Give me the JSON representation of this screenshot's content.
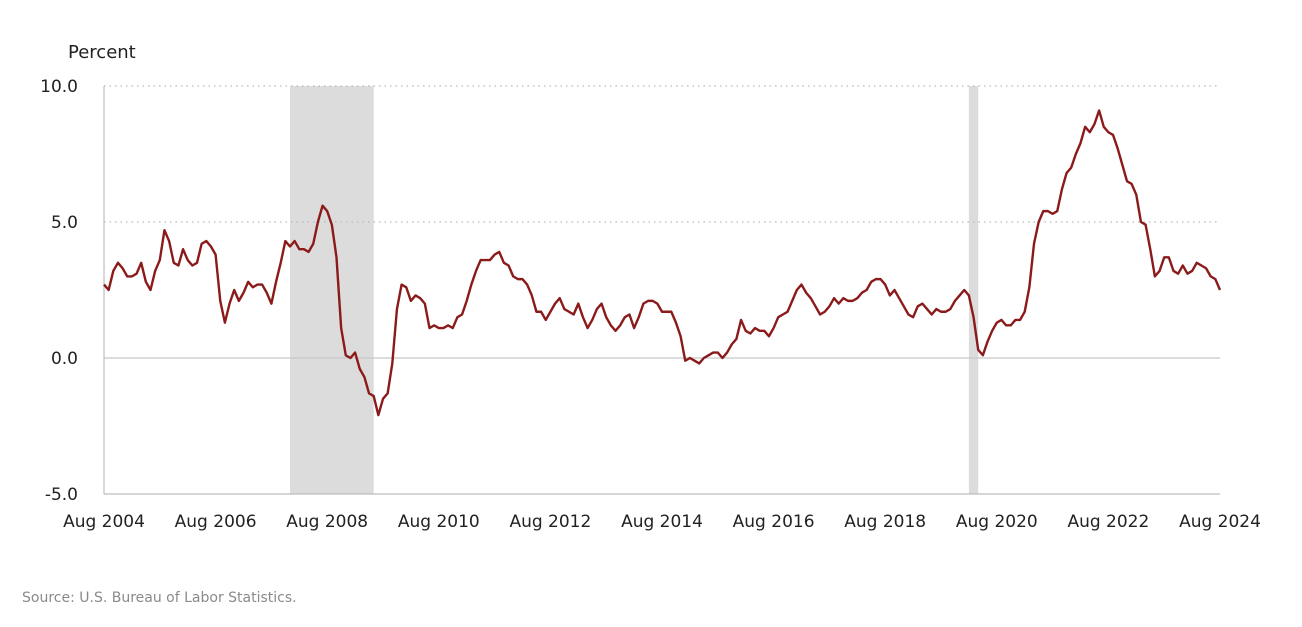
{
  "chart_data": {
    "type": "line",
    "ylabel": "Percent",
    "ylim": [
      -5,
      10
    ],
    "yticks": [
      "10.0",
      "5.0",
      "0.0",
      "-5.0"
    ],
    "ytick_values": [
      10,
      5,
      0,
      -5
    ],
    "xticks": [
      "Aug 2004",
      "Aug 2006",
      "Aug 2008",
      "Aug 2010",
      "Aug 2012",
      "Aug 2014",
      "Aug 2016",
      "Aug 2018",
      "Aug 2020",
      "Aug 2022",
      "Aug 2024"
    ],
    "x_start": "2004-08",
    "x_end": "2024-08",
    "grid": "horizontal dotted at 5.0 and 10.0; solid zero line",
    "recessions": [
      {
        "start": "2007-12",
        "end": "2009-06"
      },
      {
        "start": "2020-02",
        "end": "2020-04"
      }
    ],
    "series": [
      {
        "color": "#8b1a1a",
        "points": [
          [
            "2004-08",
            2.7
          ],
          [
            "2004-09",
            2.5
          ],
          [
            "2004-10",
            3.2
          ],
          [
            "2004-11",
            3.5
          ],
          [
            "2004-12",
            3.3
          ],
          [
            "2005-01",
            3.0
          ],
          [
            "2005-02",
            3.0
          ],
          [
            "2005-03",
            3.1
          ],
          [
            "2005-04",
            3.5
          ],
          [
            "2005-05",
            2.8
          ],
          [
            "2005-06",
            2.5
          ],
          [
            "2005-07",
            3.2
          ],
          [
            "2005-08",
            3.6
          ],
          [
            "2005-09",
            4.7
          ],
          [
            "2005-10",
            4.3
          ],
          [
            "2005-11",
            3.5
          ],
          [
            "2005-12",
            3.4
          ],
          [
            "2006-01",
            4.0
          ],
          [
            "2006-02",
            3.6
          ],
          [
            "2006-03",
            3.4
          ],
          [
            "2006-04",
            3.5
          ],
          [
            "2006-05",
            4.2
          ],
          [
            "2006-06",
            4.3
          ],
          [
            "2006-07",
            4.1
          ],
          [
            "2006-08",
            3.8
          ],
          [
            "2006-09",
            2.1
          ],
          [
            "2006-10",
            1.3
          ],
          [
            "2006-11",
            2.0
          ],
          [
            "2006-12",
            2.5
          ],
          [
            "2007-01",
            2.1
          ],
          [
            "2007-02",
            2.4
          ],
          [
            "2007-03",
            2.8
          ],
          [
            "2007-04",
            2.6
          ],
          [
            "2007-05",
            2.7
          ],
          [
            "2007-06",
            2.7
          ],
          [
            "2007-07",
            2.4
          ],
          [
            "2007-08",
            2.0
          ],
          [
            "2007-09",
            2.8
          ],
          [
            "2007-10",
            3.5
          ],
          [
            "2007-11",
            4.3
          ],
          [
            "2007-12",
            4.1
          ],
          [
            "2008-01",
            4.3
          ],
          [
            "2008-02",
            4.0
          ],
          [
            "2008-03",
            4.0
          ],
          [
            "2008-04",
            3.9
          ],
          [
            "2008-05",
            4.2
          ],
          [
            "2008-06",
            5.0
          ],
          [
            "2008-07",
            5.6
          ],
          [
            "2008-08",
            5.4
          ],
          [
            "2008-09",
            4.9
          ],
          [
            "2008-10",
            3.7
          ],
          [
            "2008-11",
            1.1
          ],
          [
            "2008-12",
            0.1
          ],
          [
            "2009-01",
            0.0
          ],
          [
            "2009-02",
            0.2
          ],
          [
            "2009-03",
            -0.4
          ],
          [
            "2009-04",
            -0.7
          ],
          [
            "2009-05",
            -1.3
          ],
          [
            "2009-06",
            -1.4
          ],
          [
            "2009-07",
            -2.1
          ],
          [
            "2009-08",
            -1.5
          ],
          [
            "2009-09",
            -1.3
          ],
          [
            "2009-10",
            -0.2
          ],
          [
            "2009-11",
            1.8
          ],
          [
            "2009-12",
            2.7
          ],
          [
            "2010-01",
            2.6
          ],
          [
            "2010-02",
            2.1
          ],
          [
            "2010-03",
            2.3
          ],
          [
            "2010-04",
            2.2
          ],
          [
            "2010-05",
            2.0
          ],
          [
            "2010-06",
            1.1
          ],
          [
            "2010-07",
            1.2
          ],
          [
            "2010-08",
            1.1
          ],
          [
            "2010-09",
            1.1
          ],
          [
            "2010-10",
            1.2
          ],
          [
            "2010-11",
            1.1
          ],
          [
            "2010-12",
            1.5
          ],
          [
            "2011-01",
            1.6
          ],
          [
            "2011-02",
            2.1
          ],
          [
            "2011-03",
            2.7
          ],
          [
            "2011-04",
            3.2
          ],
          [
            "2011-05",
            3.6
          ],
          [
            "2011-06",
            3.6
          ],
          [
            "2011-07",
            3.6
          ],
          [
            "2011-08",
            3.8
          ],
          [
            "2011-09",
            3.9
          ],
          [
            "2011-10",
            3.5
          ],
          [
            "2011-11",
            3.4
          ],
          [
            "2011-12",
            3.0
          ],
          [
            "2012-01",
            2.9
          ],
          [
            "2012-02",
            2.9
          ],
          [
            "2012-03",
            2.7
          ],
          [
            "2012-04",
            2.3
          ],
          [
            "2012-05",
            1.7
          ],
          [
            "2012-06",
            1.7
          ],
          [
            "2012-07",
            1.4
          ],
          [
            "2012-08",
            1.7
          ],
          [
            "2012-09",
            2.0
          ],
          [
            "2012-10",
            2.2
          ],
          [
            "2012-11",
            1.8
          ],
          [
            "2012-12",
            1.7
          ],
          [
            "2013-01",
            1.6
          ],
          [
            "2013-02",
            2.0
          ],
          [
            "2013-03",
            1.5
          ],
          [
            "2013-04",
            1.1
          ],
          [
            "2013-05",
            1.4
          ],
          [
            "2013-06",
            1.8
          ],
          [
            "2013-07",
            2.0
          ],
          [
            "2013-08",
            1.5
          ],
          [
            "2013-09",
            1.2
          ],
          [
            "2013-10",
            1.0
          ],
          [
            "2013-11",
            1.2
          ],
          [
            "2013-12",
            1.5
          ],
          [
            "2014-01",
            1.6
          ],
          [
            "2014-02",
            1.1
          ],
          [
            "2014-03",
            1.5
          ],
          [
            "2014-04",
            2.0
          ],
          [
            "2014-05",
            2.1
          ],
          [
            "2014-06",
            2.1
          ],
          [
            "2014-07",
            2.0
          ],
          [
            "2014-08",
            1.7
          ],
          [
            "2014-09",
            1.7
          ],
          [
            "2014-10",
            1.7
          ],
          [
            "2014-11",
            1.3
          ],
          [
            "2014-12",
            0.8
          ],
          [
            "2015-01",
            -0.1
          ],
          [
            "2015-02",
            0.0
          ],
          [
            "2015-03",
            -0.1
          ],
          [
            "2015-04",
            -0.2
          ],
          [
            "2015-05",
            0.0
          ],
          [
            "2015-06",
            0.1
          ],
          [
            "2015-07",
            0.2
          ],
          [
            "2015-08",
            0.2
          ],
          [
            "2015-09",
            0.0
          ],
          [
            "2015-10",
            0.2
          ],
          [
            "2015-11",
            0.5
          ],
          [
            "2015-12",
            0.7
          ],
          [
            "2016-01",
            1.4
          ],
          [
            "2016-02",
            1.0
          ],
          [
            "2016-03",
            0.9
          ],
          [
            "2016-04",
            1.1
          ],
          [
            "2016-05",
            1.0
          ],
          [
            "2016-06",
            1.0
          ],
          [
            "2016-07",
            0.8
          ],
          [
            "2016-08",
            1.1
          ],
          [
            "2016-09",
            1.5
          ],
          [
            "2016-10",
            1.6
          ],
          [
            "2016-11",
            1.7
          ],
          [
            "2016-12",
            2.1
          ],
          [
            "2017-01",
            2.5
          ],
          [
            "2017-02",
            2.7
          ],
          [
            "2017-03",
            2.4
          ],
          [
            "2017-04",
            2.2
          ],
          [
            "2017-05",
            1.9
          ],
          [
            "2017-06",
            1.6
          ],
          [
            "2017-07",
            1.7
          ],
          [
            "2017-08",
            1.9
          ],
          [
            "2017-09",
            2.2
          ],
          [
            "2017-10",
            2.0
          ],
          [
            "2017-11",
            2.2
          ],
          [
            "2017-12",
            2.1
          ],
          [
            "2018-01",
            2.1
          ],
          [
            "2018-02",
            2.2
          ],
          [
            "2018-03",
            2.4
          ],
          [
            "2018-04",
            2.5
          ],
          [
            "2018-05",
            2.8
          ],
          [
            "2018-06",
            2.9
          ],
          [
            "2018-07",
            2.9
          ],
          [
            "2018-08",
            2.7
          ],
          [
            "2018-09",
            2.3
          ],
          [
            "2018-10",
            2.5
          ],
          [
            "2018-11",
            2.2
          ],
          [
            "2018-12",
            1.9
          ],
          [
            "2019-01",
            1.6
          ],
          [
            "2019-02",
            1.5
          ],
          [
            "2019-03",
            1.9
          ],
          [
            "2019-04",
            2.0
          ],
          [
            "2019-05",
            1.8
          ],
          [
            "2019-06",
            1.6
          ],
          [
            "2019-07",
            1.8
          ],
          [
            "2019-08",
            1.7
          ],
          [
            "2019-09",
            1.7
          ],
          [
            "2019-10",
            1.8
          ],
          [
            "2019-11",
            2.1
          ],
          [
            "2019-12",
            2.3
          ],
          [
            "2020-01",
            2.5
          ],
          [
            "2020-02",
            2.3
          ],
          [
            "2020-03",
            1.5
          ],
          [
            "2020-04",
            0.3
          ],
          [
            "2020-05",
            0.1
          ],
          [
            "2020-06",
            0.6
          ],
          [
            "2020-07",
            1.0
          ],
          [
            "2020-08",
            1.3
          ],
          [
            "2020-09",
            1.4
          ],
          [
            "2020-10",
            1.2
          ],
          [
            "2020-11",
            1.2
          ],
          [
            "2020-12",
            1.4
          ],
          [
            "2021-01",
            1.4
          ],
          [
            "2021-02",
            1.7
          ],
          [
            "2021-03",
            2.6
          ],
          [
            "2021-04",
            4.2
          ],
          [
            "2021-05",
            5.0
          ],
          [
            "2021-06",
            5.4
          ],
          [
            "2021-07",
            5.4
          ],
          [
            "2021-08",
            5.3
          ],
          [
            "2021-09",
            5.4
          ],
          [
            "2021-10",
            6.2
          ],
          [
            "2021-11",
            6.8
          ],
          [
            "2021-12",
            7.0
          ],
          [
            "2022-01",
            7.5
          ],
          [
            "2022-02",
            7.9
          ],
          [
            "2022-03",
            8.5
          ],
          [
            "2022-04",
            8.3
          ],
          [
            "2022-05",
            8.6
          ],
          [
            "2022-06",
            9.1
          ],
          [
            "2022-07",
            8.5
          ],
          [
            "2022-08",
            8.3
          ],
          [
            "2022-09",
            8.2
          ],
          [
            "2022-10",
            7.7
          ],
          [
            "2022-11",
            7.1
          ],
          [
            "2022-12",
            6.5
          ],
          [
            "2023-01",
            6.4
          ],
          [
            "2023-02",
            6.0
          ],
          [
            "2023-03",
            5.0
          ],
          [
            "2023-04",
            4.9
          ],
          [
            "2023-05",
            4.0
          ],
          [
            "2023-06",
            3.0
          ],
          [
            "2023-07",
            3.2
          ],
          [
            "2023-08",
            3.7
          ],
          [
            "2023-09",
            3.7
          ],
          [
            "2023-10",
            3.2
          ],
          [
            "2023-11",
            3.1
          ],
          [
            "2023-12",
            3.4
          ],
          [
            "2024-01",
            3.1
          ],
          [
            "2024-02",
            3.2
          ],
          [
            "2024-03",
            3.5
          ],
          [
            "2024-04",
            3.4
          ],
          [
            "2024-05",
            3.3
          ],
          [
            "2024-06",
            3.0
          ],
          [
            "2024-07",
            2.9
          ],
          [
            "2024-08",
            2.5
          ]
        ]
      }
    ]
  },
  "source": "Source: U.S. Bureau of Labor Statistics."
}
